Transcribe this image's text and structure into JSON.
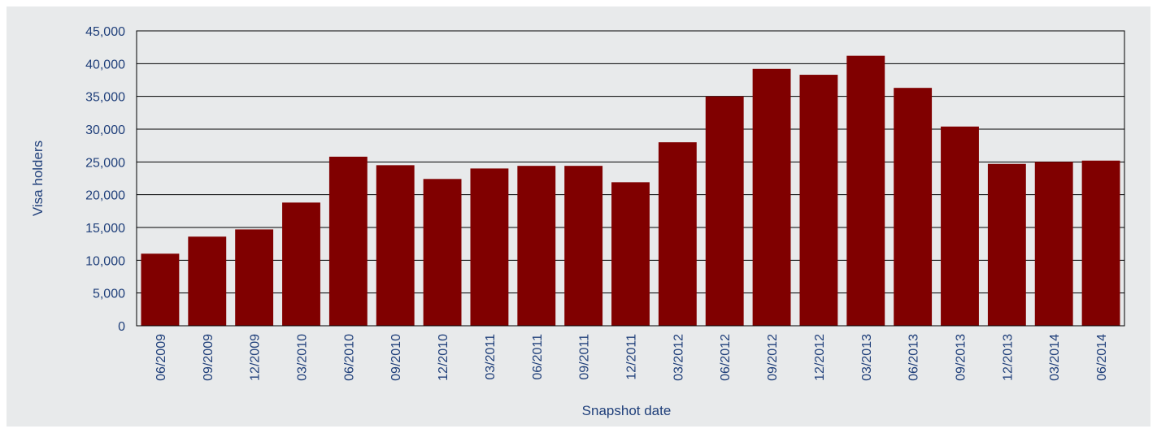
{
  "chart_data": {
    "type": "bar",
    "title": "",
    "xlabel": "Snapshot date",
    "ylabel": "Visa holders",
    "ylim": [
      0,
      45000
    ],
    "yticks": [
      0,
      5000,
      10000,
      15000,
      20000,
      25000,
      30000,
      35000,
      40000,
      45000
    ],
    "ytick_labels": [
      "0",
      "5,000",
      "10,000",
      "15,000",
      "20,000",
      "25,000",
      "30,000",
      "35,000",
      "40,000",
      "45,000"
    ],
    "grid": true,
    "legend": "none",
    "bar_color": "#800000",
    "categories": [
      "06/2009",
      "09/2009",
      "12/2009",
      "03/2010",
      "06/2010",
      "09/2010",
      "12/2010",
      "03/2011",
      "06/2011",
      "09/2011",
      "12/2011",
      "03/2012",
      "06/2012",
      "09/2012",
      "12/2012",
      "03/2013",
      "06/2013",
      "09/2013",
      "12/2013",
      "03/2014",
      "06/2014"
    ],
    "values": [
      11000,
      13600,
      14700,
      18800,
      25800,
      24500,
      22400,
      24000,
      24400,
      24400,
      21900,
      28000,
      35000,
      39200,
      38300,
      41200,
      36300,
      30400,
      24700,
      25000,
      25200
    ]
  }
}
